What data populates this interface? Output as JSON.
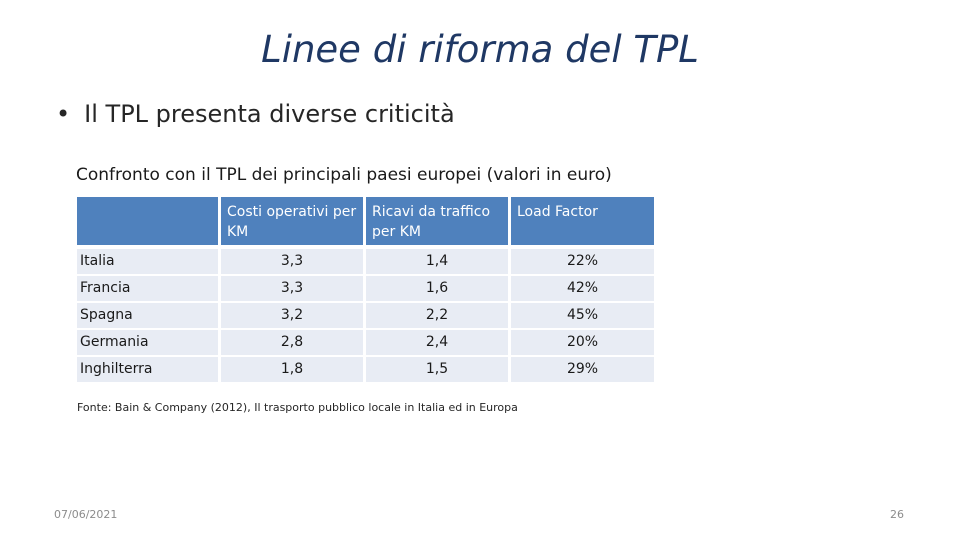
{
  "slide": {
    "title": "Linee di riforma del TPL",
    "bullet": "Il TPL presenta diverse criticità",
    "table_caption": "Confronto con il TPL dei principali  paesi europei (valori in euro)",
    "source": "Fonte: Bain & Company (2012), Il trasporto pubblico locale in Italia ed in Europa",
    "date": "07/06/2021",
    "page_number": "26"
  },
  "table": {
    "headers": [
      "",
      "Costi operativi per KM",
      "Ricavi da traffico per KM",
      "Load Factor"
    ],
    "rows": [
      [
        "Italia",
        "3,3",
        "1,4",
        "22%"
      ],
      [
        "Francia",
        "3,3",
        "1,6",
        "42%"
      ],
      [
        "Spagna",
        "3,2",
        "2,2",
        "45%"
      ],
      [
        "Germania",
        "2,8",
        "2,4",
        "20%"
      ],
      [
        "Inghilterra",
        "1,8",
        "1,5",
        "29%"
      ]
    ]
  },
  "colors": {
    "title": "#1F3864",
    "header_fill": "#4F81BD",
    "row_fill": "#E8ECF4"
  }
}
